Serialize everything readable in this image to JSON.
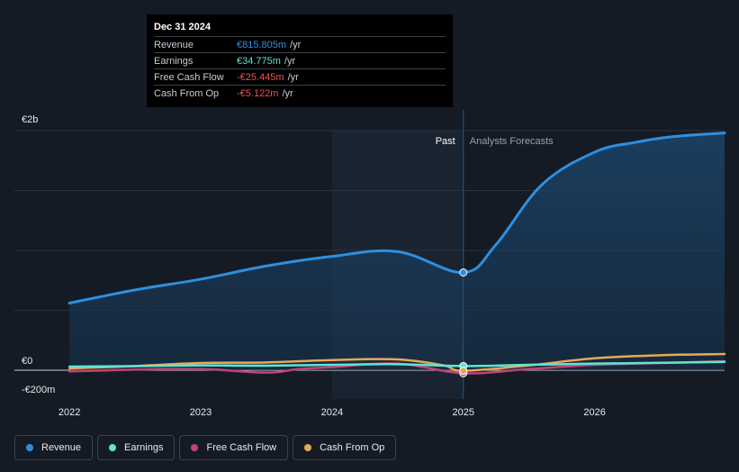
{
  "chart_data": {
    "type": "line",
    "title": "",
    "xlabel": "",
    "ylabel": "",
    "x_ticks": [
      "2022",
      "2023",
      "2024",
      "2025",
      "2026"
    ],
    "x_tick_values": [
      2022,
      2023,
      2024,
      2025,
      2026
    ],
    "xlim": [
      2021.8,
      2026.99
    ],
    "ylim": [
      -200,
      2000
    ],
    "y_tick_labels": [
      {
        "value": 2000,
        "label": "€2b"
      },
      {
        "value": 0,
        "label": "€0"
      },
      {
        "value": -200,
        "label": "-€200m"
      }
    ],
    "gridlines_y": [
      2000,
      1500,
      1000,
      500,
      0
    ],
    "past_label": "Past",
    "forecast_label": "Analysts Forecasts",
    "divider_x": 2025.0,
    "highlight_start_x": 2024.0,
    "series": [
      {
        "name": "Revenue",
        "color": "#2d8fe0",
        "fill": true,
        "x": [
          2022.0,
          2022.5,
          2023.0,
          2023.5,
          2024.0,
          2024.5,
          2025.0,
          2025.25,
          2025.6,
          2026.0,
          2026.3,
          2026.6,
          2026.99
        ],
        "values": [
          560,
          670,
          760,
          870,
          950,
          990,
          816,
          1050,
          1550,
          1820,
          1900,
          1950,
          1980
        ]
      },
      {
        "name": "Earnings",
        "color": "#5ee6d0",
        "fill": false,
        "x": [
          2022.0,
          2022.5,
          2023.0,
          2023.5,
          2024.0,
          2024.5,
          2025.0,
          2025.5,
          2026.0,
          2026.5,
          2026.99
        ],
        "values": [
          30,
          34,
          40,
          38,
          45,
          50,
          35,
          45,
          55,
          62,
          70
        ]
      },
      {
        "name": "Free Cash Flow",
        "color": "#c0427a",
        "fill": false,
        "x": [
          2022.0,
          2022.5,
          2023.0,
          2023.5,
          2023.75,
          2024.0,
          2024.5,
          2025.0,
          2025.5,
          2026.0,
          2026.5,
          2026.99
        ],
        "values": [
          -10,
          5,
          10,
          -20,
          10,
          25,
          55,
          -25,
          10,
          45,
          60,
          75
        ]
      },
      {
        "name": "Cash From Op",
        "color": "#e6a85a",
        "fill": false,
        "x": [
          2022.0,
          2022.5,
          2023.0,
          2023.5,
          2024.0,
          2024.5,
          2024.85,
          2025.0,
          2025.5,
          2026.0,
          2026.5,
          2026.99
        ],
        "values": [
          15,
          35,
          60,
          65,
          85,
          90,
          40,
          -5,
          40,
          100,
          125,
          135
        ]
      }
    ],
    "highlight_points": [
      {
        "series": "Revenue",
        "x": 2025.0,
        "y": 816
      },
      {
        "series": "Earnings",
        "x": 2025.0,
        "y": 35
      },
      {
        "series": "Free Cash Flow",
        "x": 2025.0,
        "y": -25
      },
      {
        "series": "Cash From Op",
        "x": 2025.0,
        "y": -5
      }
    ]
  },
  "tooltip": {
    "date": "Dec 31 2024",
    "unit": "/yr",
    "rows": [
      {
        "label": "Revenue",
        "value": "€815.805m",
        "color": "#2d8fe0"
      },
      {
        "label": "Earnings",
        "value": "€34.775m",
        "color": "#5ee6d0"
      },
      {
        "label": "Free Cash Flow",
        "value": "-€25.445m",
        "color": "#f0504f"
      },
      {
        "label": "Cash From Op",
        "value": "-€5.122m",
        "color": "#f0504f"
      }
    ]
  },
  "legend": [
    {
      "label": "Revenue",
      "color": "#2d8fe0"
    },
    {
      "label": "Earnings",
      "color": "#5ee6d0"
    },
    {
      "label": "Free Cash Flow",
      "color": "#c0427a"
    },
    {
      "label": "Cash From Op",
      "color": "#e6a85a"
    }
  ]
}
